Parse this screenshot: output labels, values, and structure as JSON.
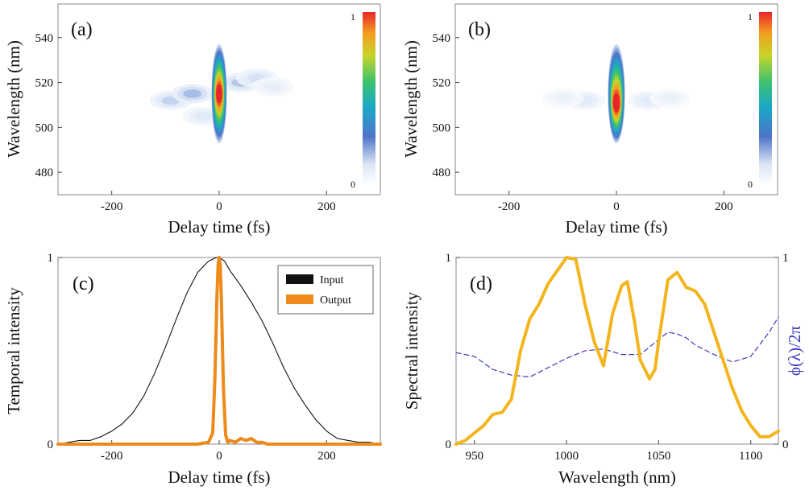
{
  "colors": {
    "input_line": "#111111",
    "output_line": "#ee8a1a",
    "spectral_line": "#f2b51e",
    "phase_line": "#3b3bbb",
    "phase_axis": "#3b3bbb",
    "frame": "#888888"
  },
  "chart_data": [
    {
      "type": "heatmap",
      "panel": "(a)",
      "xlabel": "Delay time (fs)",
      "ylabel": "Wavelength (nm)",
      "xlim": [
        -300,
        300
      ],
      "ylim": [
        470,
        555
      ],
      "xticks": [
        -200,
        0,
        200
      ],
      "yticks": [
        480,
        500,
        520,
        540
      ],
      "colorbar": {
        "min_label": "0",
        "max_label": "1"
      },
      "peak": {
        "x": 0,
        "y": 515
      },
      "main_lobe": {
        "x_width_fs": 9,
        "y_range": [
          495,
          535
        ]
      },
      "side_lobes": [
        {
          "x": -90,
          "y": 512,
          "intensity": 0.18
        },
        {
          "x": -50,
          "y": 515,
          "intensity": 0.22
        },
        {
          "x": 40,
          "y": 520,
          "intensity": 0.2
        },
        {
          "x": 70,
          "y": 522,
          "intensity": 0.15
        },
        {
          "x": -30,
          "y": 505,
          "intensity": 0.12
        },
        {
          "x": 100,
          "y": 518,
          "intensity": 0.1
        }
      ]
    },
    {
      "type": "heatmap",
      "panel": "(b)",
      "xlabel": "Delay time (fs)",
      "ylabel": "Wavelength (nm)",
      "xlim": [
        -300,
        300
      ],
      "ylim": [
        470,
        555
      ],
      "xticks": [
        -200,
        0,
        200
      ],
      "yticks": [
        480,
        500,
        520,
        540
      ],
      "colorbar": {
        "min_label": "0",
        "max_label": "1"
      },
      "peak": {
        "x": 0,
        "y": 511
      },
      "main_lobe": {
        "x_width_fs": 10,
        "y_range": [
          495,
          535
        ]
      },
      "side_lobes": [
        {
          "x": -60,
          "y": 512,
          "intensity": 0.12
        },
        {
          "x": 60,
          "y": 512,
          "intensity": 0.12
        },
        {
          "x": -100,
          "y": 513,
          "intensity": 0.08
        },
        {
          "x": 100,
          "y": 513,
          "intensity": 0.08
        }
      ]
    },
    {
      "type": "line",
      "panel": "(c)",
      "xlabel": "Delay time (fs)",
      "ylabel": "Temporal intensity",
      "xlim": [
        -300,
        300
      ],
      "ylim": [
        0,
        1
      ],
      "xticks": [
        -200,
        0,
        200
      ],
      "yticks": [
        0,
        1
      ],
      "legend": "top-right",
      "series": [
        {
          "name": "Input",
          "x": [
            -300,
            -280,
            -260,
            -240,
            -220,
            -200,
            -180,
            -160,
            -140,
            -120,
            -100,
            -80,
            -60,
            -40,
            -20,
            -5,
            0,
            10,
            20,
            40,
            60,
            80,
            100,
            120,
            140,
            160,
            180,
            200,
            220,
            240,
            260,
            280,
            300
          ],
          "y": [
            0.0,
            0.01,
            0.02,
            0.02,
            0.04,
            0.07,
            0.11,
            0.17,
            0.26,
            0.38,
            0.52,
            0.67,
            0.81,
            0.92,
            0.98,
            1.0,
            1.0,
            0.98,
            0.93,
            0.85,
            0.76,
            0.66,
            0.54,
            0.41,
            0.3,
            0.21,
            0.13,
            0.07,
            0.03,
            0.02,
            0.01,
            0.01,
            0.0
          ]
        },
        {
          "name": "Output",
          "x": [
            -300,
            -100,
            -40,
            -20,
            -12,
            -8,
            -4,
            -2,
            0,
            2,
            4,
            8,
            12,
            16,
            20,
            30,
            40,
            50,
            60,
            70,
            80,
            90,
            100,
            300
          ],
          "y": [
            0.0,
            0.0,
            0.0,
            0.01,
            0.06,
            0.35,
            0.8,
            0.96,
            1.0,
            0.96,
            0.78,
            0.3,
            0.05,
            0.01,
            0.02,
            0.01,
            0.03,
            0.02,
            0.03,
            0.01,
            0.01,
            0.0,
            0.0,
            0.0
          ]
        }
      ]
    },
    {
      "type": "line",
      "panel": "(d)",
      "xlabel": "Wavelength (nm)",
      "ylabel": "Spectral intensity",
      "ylabel_right": "ϕ(λ)/2π",
      "xlim": [
        940,
        1115
      ],
      "ylim": [
        0,
        1
      ],
      "xticks": [
        950,
        1000,
        1050,
        1100
      ],
      "yticks": [
        0,
        1
      ],
      "yticks_right": [
        0,
        1
      ],
      "series": [
        {
          "name": "Spectral intensity",
          "x": [
            940,
            945,
            950,
            955,
            960,
            965,
            970,
            975,
            980,
            985,
            990,
            995,
            1000,
            1005,
            1010,
            1015,
            1020,
            1025,
            1030,
            1033,
            1037,
            1040,
            1045,
            1048,
            1050,
            1055,
            1060,
            1065,
            1070,
            1075,
            1080,
            1085,
            1090,
            1095,
            1100,
            1105,
            1110,
            1115
          ],
          "y": [
            0.0,
            0.02,
            0.06,
            0.1,
            0.16,
            0.17,
            0.24,
            0.5,
            0.67,
            0.75,
            0.86,
            0.93,
            1.0,
            0.99,
            0.75,
            0.55,
            0.42,
            0.7,
            0.85,
            0.87,
            0.65,
            0.45,
            0.35,
            0.4,
            0.55,
            0.88,
            0.92,
            0.84,
            0.82,
            0.75,
            0.6,
            0.45,
            0.3,
            0.18,
            0.1,
            0.04,
            0.04,
            0.07
          ]
        },
        {
          "name": "ϕ(λ)/2π",
          "axis": "right",
          "dashed": true,
          "x": [
            940,
            950,
            960,
            970,
            980,
            990,
            1000,
            1010,
            1020,
            1030,
            1040,
            1050,
            1055,
            1060,
            1065,
            1070,
            1080,
            1090,
            1100,
            1110,
            1115
          ],
          "y": [
            0.49,
            0.47,
            0.4,
            0.37,
            0.36,
            0.41,
            0.46,
            0.5,
            0.51,
            0.48,
            0.48,
            0.56,
            0.6,
            0.59,
            0.57,
            0.53,
            0.48,
            0.44,
            0.47,
            0.6,
            0.68
          ]
        }
      ]
    }
  ]
}
